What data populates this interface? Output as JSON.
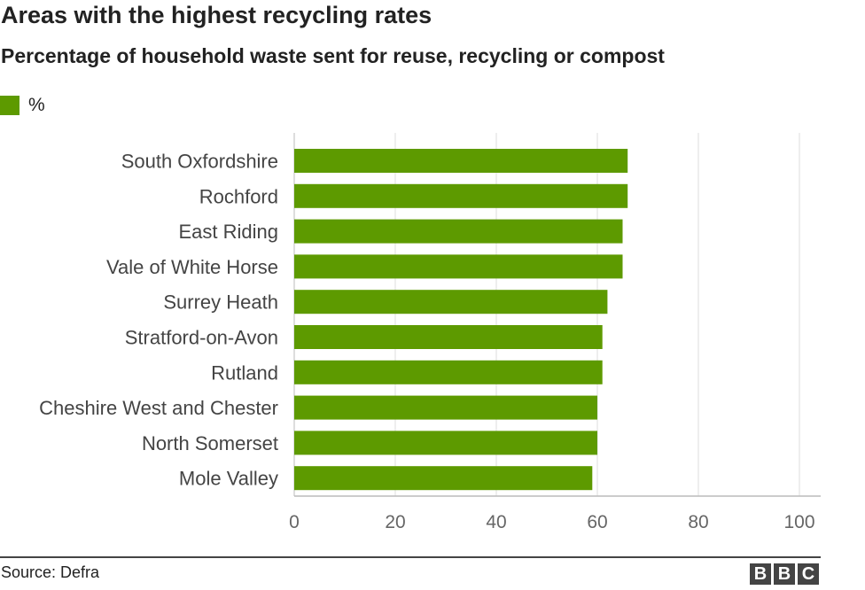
{
  "chart_data": {
    "type": "bar",
    "orientation": "horizontal",
    "title": "Areas with the highest recycling rates",
    "subtitle": "Percentage of household waste sent for reuse, recycling or compost",
    "categories": [
      "South Oxfordshire",
      "Rochford",
      "East Riding",
      "Vale of White Horse",
      "Surrey Heath",
      "Stratford-on-Avon",
      "Rutland",
      "Cheshire West and Chester",
      "North Somerset",
      "Mole Valley"
    ],
    "series": [
      {
        "name": "%",
        "values": [
          66,
          66,
          65,
          65,
          62,
          61,
          61,
          60,
          60,
          59
        ]
      }
    ],
    "xlim": [
      0,
      100
    ],
    "xticks": [
      "0",
      "20",
      "40",
      "60",
      "80",
      "100"
    ],
    "grid": true,
    "legend": "top-left",
    "bar_color": "#5d9a00",
    "grid_color": "#dddddd",
    "source": "Source: Defra"
  },
  "branding": {
    "logo_letters": [
      "B",
      "B",
      "C"
    ],
    "logo_color": "#444444"
  }
}
